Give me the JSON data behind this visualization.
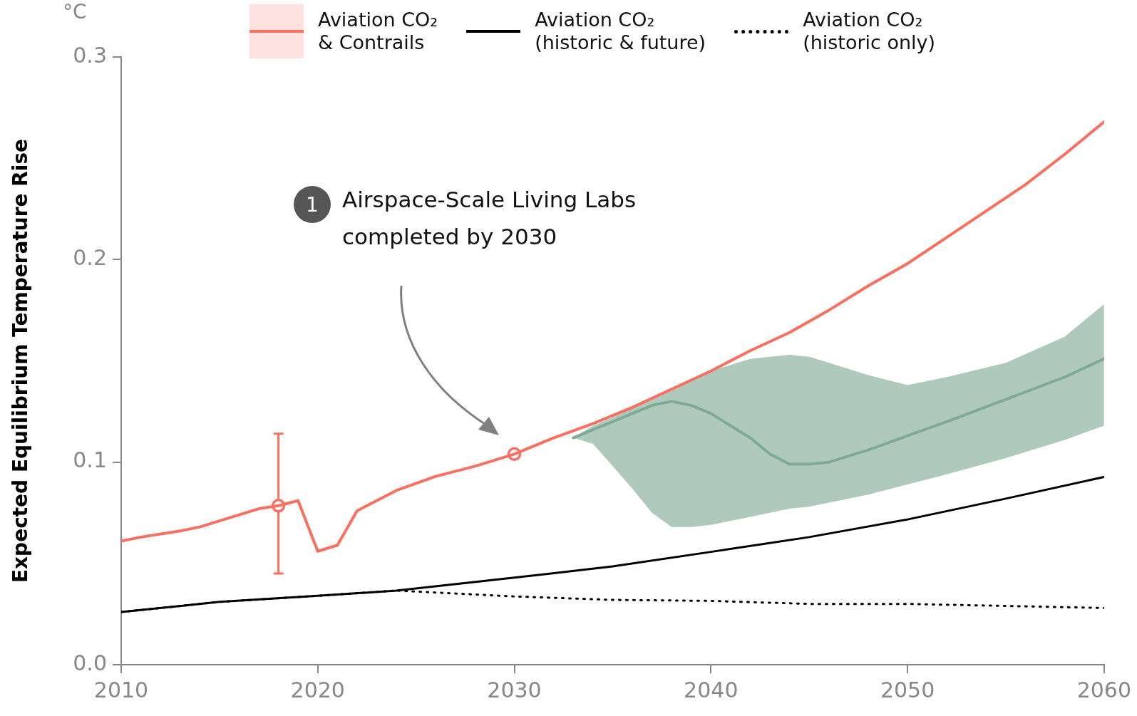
{
  "chart_data": {
    "type": "line",
    "ylabel": "Expected Equilibrium Temperature Rise",
    "annotations": [
      "°C",
      "Airspace-Scale Living Labs\ncompleted by 2030",
      "1"
    ],
    "xlim": [
      2010,
      2060
    ],
    "xticks": [
      2010,
      2020,
      2030,
      2040,
      2050,
      2060
    ],
    "ylim": [
      0,
      0.3
    ],
    "yticks": [
      {
        "value": 0,
        "label": "0.0"
      },
      0.1,
      0.2,
      0.3
    ],
    "grid": false,
    "legend": "top",
    "marker": "none",
    "line_style": "solid",
    "series": [
      {
        "name": "Aviation CO₂\n& Contrails",
        "color": "#f87060",
        "x": [
          2010,
          2011,
          2013,
          2014,
          2016,
          2017,
          2018,
          2019,
          2020,
          2021,
          2022,
          2024,
          2026,
          2028,
          2030,
          2032,
          2034,
          2036,
          2038,
          2040,
          2042,
          2044,
          2046,
          2048,
          2050,
          2052,
          2054,
          2056,
          2058,
          2060
        ],
        "values": [
          0.061,
          0.063,
          0.066,
          0.068,
          0.074,
          0.077,
          0.0785,
          0.081,
          0.056,
          0.059,
          0.076,
          0.086,
          0.093,
          0.098,
          0.104,
          0.112,
          0.119,
          0.127,
          0.136,
          0.145,
          0.155,
          0.164,
          0.175,
          0.187,
          0.198,
          0.211,
          0.224,
          0.237,
          0.252,
          0.268
        ]
      },
      {
        "name": "Aviation CO₂\n(historic & future)",
        "color": "#000000",
        "x": [
          2010,
          2015,
          2020,
          2024,
          2030,
          2035,
          2040,
          2045,
          2050,
          2055,
          2060
        ],
        "values": [
          0.026,
          0.031,
          0.034,
          0.0366,
          0.043,
          0.0485,
          0.0557,
          0.063,
          0.0717,
          0.082,
          0.0927
        ]
      },
      {
        "name": "Aviation CO₂\n(historic only)",
        "color": "#000000",
        "line_style": "dotted",
        "x": [
          2010,
          2015,
          2020,
          2024,
          2030,
          2035,
          2040,
          2045,
          2050,
          2055,
          2060
        ],
        "values": [
          0.026,
          0.031,
          0.034,
          0.0366,
          0.0337,
          0.032,
          0.0315,
          0.03,
          0.03,
          0.029,
          0.028
        ]
      },
      {
        "color": "#7fab95",
        "x": [
          2033,
          2034,
          2035,
          2036,
          2037,
          2038,
          2039,
          2040,
          2041,
          2042,
          2043,
          2044,
          2045,
          2046,
          2048,
          2050,
          2052,
          2055,
          2058,
          2060
        ],
        "values": [
          0.112,
          0.116,
          0.12,
          0.124,
          0.128,
          0.13,
          0.128,
          0.124,
          0.118,
          0.112,
          0.104,
          0.099,
          0.099,
          0.1,
          0.106,
          0.113,
          0.12,
          0.131,
          0.142,
          0.151
        ],
        "upper": [
          0.112,
          0.118,
          0.122,
          0.127,
          0.131,
          0.136,
          0.14,
          0.145,
          0.148,
          0.151,
          0.152,
          0.153,
          0.152,
          0.149,
          0.143,
          0.138,
          0.142,
          0.149,
          0.162,
          0.178
        ],
        "lower": [
          0.112,
          0.109,
          0.098,
          0.087,
          0.075,
          0.068,
          0.068,
          0.069,
          0.071,
          0.073,
          0.075,
          0.077,
          0.078,
          0.08,
          0.084,
          0.089,
          0.094,
          0.102,
          0.111,
          0.118
        ]
      },
      {
        "type": "scatter",
        "color": "#f87060",
        "marker": "circle",
        "x": [
          2018,
          2030
        ],
        "values": [
          0.0785,
          0.104
        ],
        "errors": [
          [
            0.045,
            0.114
          ],
          null
        ]
      }
    ]
  }
}
